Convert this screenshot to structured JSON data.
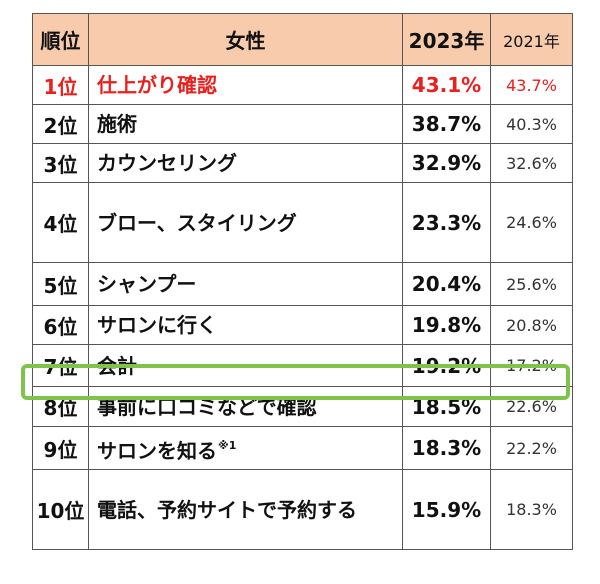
{
  "headers": {
    "rank": "順位",
    "item": "女性",
    "y2023": "2023年",
    "y2021": "2021年"
  },
  "highlight_color": "#e8201e",
  "frame_color": "#7ec44a",
  "header_bg": "#f8cbad",
  "rows": [
    {
      "rank": "1位",
      "item": "仕上がり確認",
      "note": "",
      "y2023": "43.1%",
      "y2021": "43.7%"
    },
    {
      "rank": "2位",
      "item": "施術",
      "note": "",
      "y2023": "38.7%",
      "y2021": "40.3%"
    },
    {
      "rank": "3位",
      "item": "カウンセリング",
      "note": "",
      "y2023": "32.9%",
      "y2021": "32.6%"
    },
    {
      "rank": "4位",
      "item": "ブロー、スタイリング",
      "note": "",
      "y2023": "23.3%",
      "y2021": "24.6%"
    },
    {
      "rank": "5位",
      "item": "シャンプー",
      "note": "",
      "y2023": "20.4%",
      "y2021": "25.6%"
    },
    {
      "rank": "6位",
      "item": "サロンに行く",
      "note": "",
      "y2023": "19.8%",
      "y2021": "20.8%"
    },
    {
      "rank": "7位",
      "item": "会計",
      "note": "",
      "y2023": "19.2%",
      "y2021": "17.2%"
    },
    {
      "rank": "8位",
      "item": "事前に口コミなどで確認",
      "note": "",
      "y2023": "18.5%",
      "y2021": "22.6%"
    },
    {
      "rank": "9位",
      "item": "サロンを知る",
      "note": "※1",
      "y2023": "18.3%",
      "y2021": "22.2%"
    },
    {
      "rank": "10位",
      "item": "電話、予約サイトで予約する",
      "note": "",
      "y2023": "15.9%",
      "y2021": "18.3%"
    }
  ]
}
